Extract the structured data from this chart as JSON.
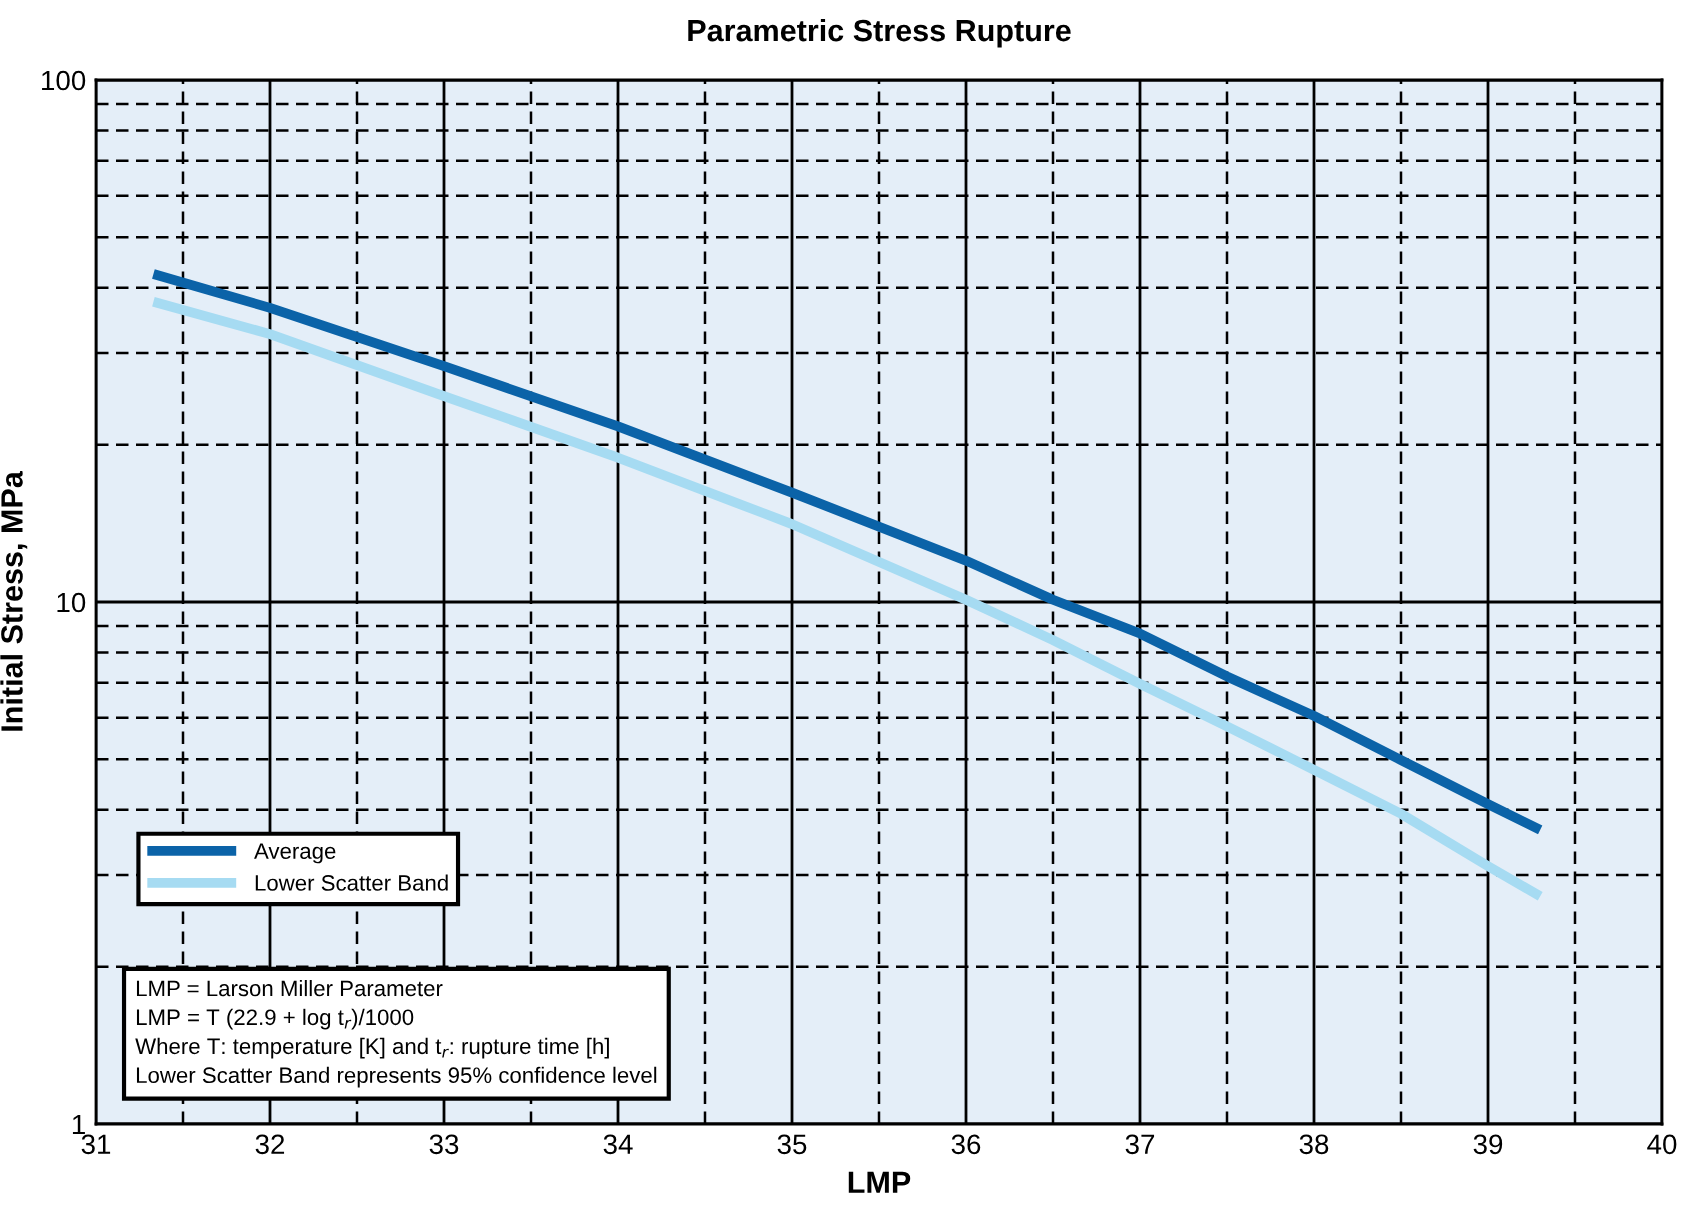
{
  "chart_data": {
    "type": "line",
    "title": "Parametric Stress Rupture",
    "xlabel": "LMP",
    "ylabel": "Initial Stress, MPa",
    "series": [
      {
        "name": "Average",
        "color": "#0b63a8",
        "x": [
          31.33,
          32,
          33,
          34,
          35,
          36,
          36.5,
          37,
          37.5,
          38,
          38.5,
          39,
          39.3
        ],
        "values": [
          42.5,
          36.6,
          28.3,
          21.7,
          16.2,
          12.0,
          10.1,
          8.7,
          7.2,
          6.05,
          4.98,
          4.1,
          3.66
        ]
      },
      {
        "name": "Lower Scatter Band",
        "color": "#a6dbf2",
        "x": [
          31.33,
          32,
          33,
          34,
          35,
          36,
          36.5,
          37,
          37.5,
          38,
          38.5,
          39,
          39.3
        ],
        "values": [
          37.6,
          32.6,
          24.8,
          18.9,
          14.1,
          10.1,
          8.45,
          6.97,
          5.78,
          4.77,
          3.93,
          3.12,
          2.73
        ]
      }
    ],
    "log": "y",
    "xlim": [
      31,
      40
    ],
    "xticks": [
      31,
      32,
      33,
      34,
      35,
      36,
      37,
      38,
      39,
      40
    ],
    "ylim": [
      1,
      100
    ],
    "yticks": [
      1,
      10,
      100
    ],
    "grid": true,
    "legend": "bottom left",
    "marker": "none",
    "line_style": "solid",
    "annotations": [
      "LMP = Larson Miller Parameter\nLMP = T (22.9 + log t$_{r}$)/1000\nWhere T: temperature [K] and t$_{r}$: rupture time [h]\nLower Scatter Band represents 95% confidence level"
    ]
  }
}
